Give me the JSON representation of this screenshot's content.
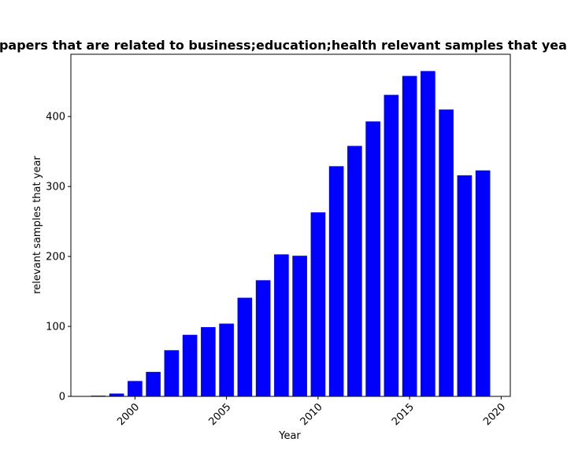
{
  "chart_data": {
    "type": "bar",
    "title": "Number of papers that are related to business;education;health relevant samples that year in privacy",
    "xlabel": "Year",
    "ylabel": "relevant samples that year",
    "x": [
      1998,
      1999,
      2000,
      2001,
      2002,
      2003,
      2004,
      2005,
      2006,
      2007,
      2008,
      2009,
      2010,
      2011,
      2012,
      2013,
      2014,
      2015,
      2016,
      2017,
      2018,
      2019
    ],
    "values": [
      1,
      4,
      22,
      35,
      66,
      88,
      99,
      104,
      141,
      166,
      203,
      201,
      263,
      329,
      358,
      393,
      431,
      458,
      465,
      410,
      316,
      323
    ],
    "xlim": [
      1996.5,
      2020.5
    ],
    "ylim": [
      0,
      489
    ],
    "xticks": [
      2000,
      2005,
      2010,
      2015,
      2020
    ],
    "xtick_labels": [
      "2000",
      "2005",
      "2010",
      "2015",
      "2020"
    ],
    "yticks": [
      0,
      100,
      200,
      300,
      400
    ],
    "ytick_labels": [
      "0",
      "100",
      "200",
      "300",
      "400"
    ],
    "bar_color": "#0000ff",
    "grid": false,
    "legend": "none"
  }
}
